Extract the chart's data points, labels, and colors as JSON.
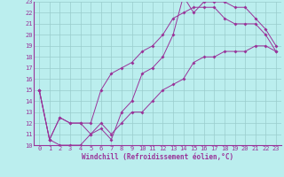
{
  "title": "",
  "xlabel": "Windchill (Refroidissement éolien,°C)",
  "ylabel": "",
  "xlim": [
    -0.5,
    23.5
  ],
  "ylim": [
    10,
    23
  ],
  "yticks": [
    10,
    11,
    12,
    13,
    14,
    15,
    16,
    17,
    18,
    19,
    20,
    21,
    22,
    23
  ],
  "xticks": [
    0,
    1,
    2,
    3,
    4,
    5,
    6,
    7,
    8,
    9,
    10,
    11,
    12,
    13,
    14,
    15,
    16,
    17,
    18,
    19,
    20,
    21,
    22,
    23
  ],
  "line_color": "#993399",
  "bg_color": "#bbeeee",
  "grid_color": "#99cccc",
  "line1_x": [
    0,
    1,
    2,
    3,
    4,
    5,
    6,
    7,
    8,
    9,
    10,
    11,
    12,
    13,
    14,
    15,
    16,
    17,
    18,
    19,
    20,
    21,
    22,
    23
  ],
  "line1_y": [
    15,
    10.5,
    10,
    10,
    10,
    11,
    12,
    11,
    12,
    13,
    13,
    14,
    15,
    15.5,
    16,
    17.5,
    18,
    18,
    18.5,
    18.5,
    18.5,
    19,
    19,
    18.5
  ],
  "line2_x": [
    0,
    1,
    2,
    3,
    4,
    5,
    6,
    7,
    8,
    9,
    10,
    11,
    12,
    13,
    14,
    15,
    16,
    17,
    18,
    19,
    20,
    21,
    22,
    23
  ],
  "line2_y": [
    15,
    10.5,
    12.5,
    12,
    12,
    11,
    11.5,
    10.5,
    13,
    14,
    16.5,
    17,
    18,
    20,
    23.5,
    22,
    23,
    23,
    23,
    22.5,
    22.5,
    21.5,
    20.5,
    19
  ],
  "line3_x": [
    0,
    1,
    2,
    3,
    4,
    5,
    6,
    7,
    8,
    9,
    10,
    11,
    12,
    13,
    14,
    15,
    16,
    17,
    18,
    19,
    20,
    21,
    22,
    23
  ],
  "line3_y": [
    15,
    10.5,
    12.5,
    12,
    12,
    12,
    15,
    16.5,
    17,
    17.5,
    18.5,
    19,
    20,
    21.5,
    22,
    22.5,
    22.5,
    22.5,
    21.5,
    21,
    21,
    21,
    20,
    18.5
  ]
}
